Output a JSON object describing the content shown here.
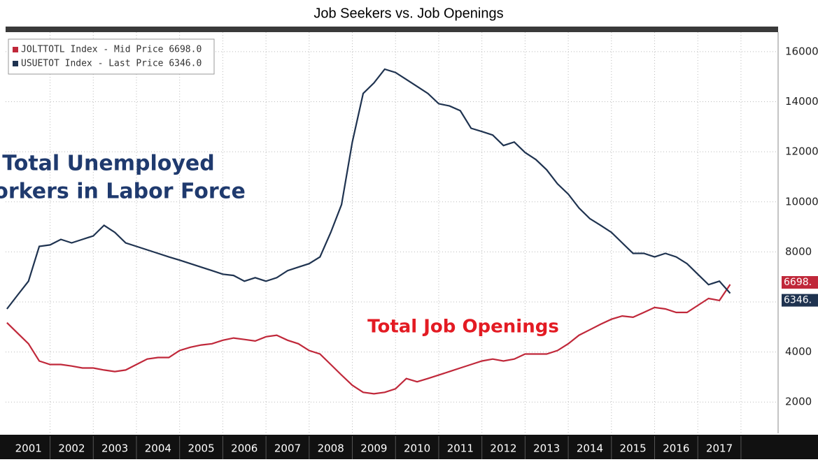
{
  "chart_data": {
    "type": "line",
    "title": "Job Seekers vs. Job Openings",
    "x": [
      2001.0,
      2001.25,
      2001.5,
      2001.75,
      2002.0,
      2002.25,
      2002.5,
      2002.75,
      2003.0,
      2003.25,
      2003.5,
      2003.75,
      2004.0,
      2004.25,
      2004.5,
      2004.75,
      2005.0,
      2005.25,
      2005.5,
      2005.75,
      2006.0,
      2006.25,
      2006.5,
      2006.75,
      2007.0,
      2007.25,
      2007.5,
      2007.75,
      2008.0,
      2008.25,
      2008.5,
      2008.75,
      2009.0,
      2009.25,
      2009.5,
      2009.75,
      2010.0,
      2010.25,
      2010.5,
      2010.75,
      2011.0,
      2011.25,
      2011.5,
      2011.75,
      2012.0,
      2012.25,
      2012.5,
      2012.75,
      2013.0,
      2013.25,
      2013.5,
      2013.75,
      2014.0,
      2014.25,
      2014.5,
      2014.75,
      2015.0,
      2015.25,
      2015.5,
      2015.75,
      2016.0,
      2016.25,
      2016.5,
      2016.75,
      2017.0,
      2017.25,
      2017.5,
      2017.75
    ],
    "series": [
      {
        "name": "JOLTTOTL Index - Mid Price 6698.0",
        "color": "#c0283a",
        "end_label": "6698.",
        "values": [
          5170,
          4750,
          4330,
          3640,
          3500,
          3500,
          3440,
          3360,
          3360,
          3280,
          3220,
          3280,
          3500,
          3720,
          3780,
          3780,
          4060,
          4190,
          4280,
          4330,
          4470,
          4560,
          4500,
          4440,
          4610,
          4670,
          4470,
          4330,
          4060,
          3920,
          3500,
          3080,
          2670,
          2390,
          2330,
          2390,
          2530,
          2940,
          2810,
          2940,
          3080,
          3220,
          3360,
          3500,
          3640,
          3720,
          3640,
          3720,
          3920,
          3920,
          3920,
          4060,
          4330,
          4670,
          4890,
          5110,
          5310,
          5440,
          5390,
          5580,
          5780,
          5720,
          5580,
          5580,
          5860,
          6140,
          6060,
          6698
        ]
      },
      {
        "name": "USUETOT Index - Last Price 6346.0",
        "color": "#1f3350",
        "end_label": "6346.",
        "values": [
          5720,
          6280,
          6830,
          8220,
          8280,
          8500,
          8360,
          8500,
          8640,
          9060,
          8780,
          8360,
          8220,
          8080,
          7940,
          7800,
          7670,
          7530,
          7390,
          7250,
          7110,
          7060,
          6830,
          6970,
          6830,
          6970,
          7250,
          7390,
          7530,
          7800,
          8780,
          9890,
          12390,
          14330,
          14750,
          15300,
          15170,
          14890,
          14610,
          14330,
          13920,
          13830,
          13640,
          12940,
          12810,
          12670,
          12250,
          12390,
          11970,
          11690,
          11280,
          10720,
          10310,
          9750,
          9330,
          9060,
          8780,
          8360,
          7940,
          7940,
          7800,
          7940,
          7800,
          7530,
          7110,
          6690,
          6830,
          6346
        ]
      }
    ],
    "annotations": [
      {
        "text": "Total Unemployed",
        "color": "#1f3a6e"
      },
      {
        "text": "Workers in Labor Force",
        "color": "#1f3a6e"
      },
      {
        "text": "Total Job Openings",
        "color": "#e31b23"
      }
    ],
    "xlim": [
      2000.97,
      2018.86
    ],
    "xticks": [
      {
        "value": 2001.5,
        "label": "2001"
      },
      {
        "value": 2002.5,
        "label": "2002"
      },
      {
        "value": 2003.5,
        "label": "2003"
      },
      {
        "value": 2004.5,
        "label": "2004"
      },
      {
        "value": 2005.5,
        "label": "2005"
      },
      {
        "value": 2006.5,
        "label": "2006"
      },
      {
        "value": 2007.5,
        "label": "2007"
      },
      {
        "value": 2008.5,
        "label": "2008"
      },
      {
        "value": 2009.5,
        "label": "2009"
      },
      {
        "value": 2010.5,
        "label": "2010"
      },
      {
        "value": 2011.5,
        "label": "2011"
      },
      {
        "value": 2012.5,
        "label": "2012"
      },
      {
        "value": 2013.5,
        "label": "2013"
      },
      {
        "value": 2014.5,
        "label": "2014"
      },
      {
        "value": 2015.5,
        "label": "2015"
      },
      {
        "value": 2016.5,
        "label": "2016"
      },
      {
        "value": 2017.5,
        "label": "2017"
      }
    ],
    "ylim": [
      750,
      16780
    ],
    "yticks": [
      2000,
      4000,
      6000,
      8000,
      10000,
      12000,
      14000,
      16000
    ],
    "grid": true
  }
}
